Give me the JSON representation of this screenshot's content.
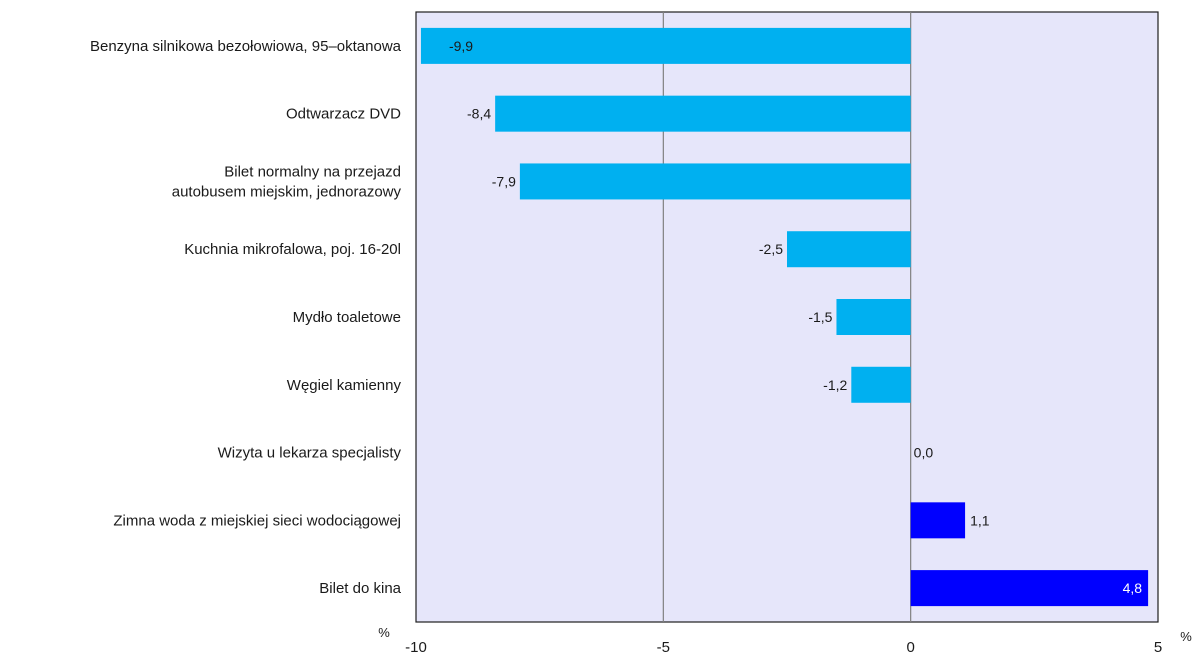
{
  "chart_data": {
    "type": "bar",
    "orientation": "horizontal",
    "categories": [
      "Benzyna silnikowa bezołowiowa, 95–oktanowa",
      "Odtwarzacz DVD",
      [
        "Bilet normalny na przejazd",
        "autobusem miejskim, jednorazowy"
      ],
      "Kuchnia mikrofalowa, poj. 16-20l",
      "Mydło toaletowe",
      "Węgiel kamienny",
      "Wizyta u lekarza specjalisty",
      "Zimna woda z miejskiej sieci wodociągowej",
      "Bilet do kina"
    ],
    "values": [
      -9.9,
      -8.4,
      -7.9,
      -2.5,
      -1.5,
      -1.2,
      0.0,
      1.1,
      4.8
    ],
    "data_labels": [
      "-9,9",
      "-8,4",
      "-7,9",
      "-2,5",
      "-1,5",
      "-1,2",
      "0,0",
      "1,1",
      "4,8"
    ],
    "xlim": [
      -10,
      5
    ],
    "x_ticks": [
      -10,
      -5,
      0,
      5
    ],
    "x_tick_labels": [
      "-10",
      "-5",
      "0",
      "5"
    ],
    "unit_label": "%",
    "grid": "vertical",
    "colors": {
      "negative": "#00b0f0",
      "positive": "#0000ff",
      "plot_background": "#e6e6fa",
      "gridline": "#808080",
      "axis": "#1f1f1f"
    }
  }
}
